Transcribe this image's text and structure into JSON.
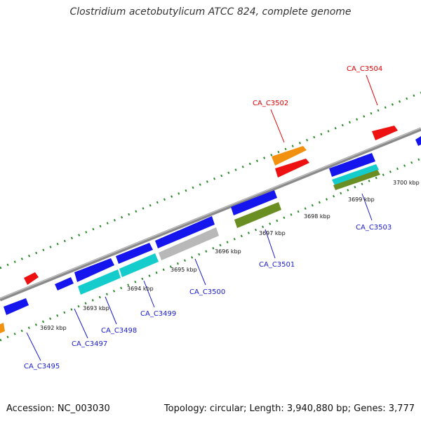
{
  "title": "Clostridium acetobutylicum ATCC 824, complete genome",
  "footer": {
    "accession": "Accession: NC_003030",
    "topology": "Topology: circular; Length: 3,940,880 bp; Genes: 3,777"
  },
  "colors": {
    "backbone": "#8a8a8a",
    "tick": "#2a8a2a",
    "label_blue": "#1a1acc",
    "label_red": "#dd0000",
    "gene_blue": "#1515ee",
    "gene_red": "#ee1111",
    "gene_orange": "#f29010",
    "gene_cyan": "#15cccc",
    "gene_olive": "#6b8e23",
    "gene_gray": "#b8b8b8"
  },
  "scale_labels": [
    "3692 kbp",
    "3693 kbp",
    "3694 kbp",
    "3695 kbp",
    "3696 kbp",
    "3697 kbp",
    "3698 kbp",
    "3699 kbp",
    "3700 kbp"
  ],
  "gene_labels": [
    {
      "id": "ca3495",
      "text": "CA_C3495",
      "color": "blue"
    },
    {
      "id": "ca3497",
      "text": "CA_C3497",
      "color": "blue"
    },
    {
      "id": "ca3498",
      "text": "CA_C3498",
      "color": "blue"
    },
    {
      "id": "ca3499",
      "text": "CA_C3499",
      "color": "blue"
    },
    {
      "id": "ca3500",
      "text": "CA_C3500",
      "color": "blue"
    },
    {
      "id": "ca3501",
      "text": "CA_C3501",
      "color": "blue"
    },
    {
      "id": "ca3503",
      "text": "CA_C3503",
      "color": "blue"
    },
    {
      "id": "ca3502",
      "text": "CA_C3502",
      "color": "red"
    },
    {
      "id": "ca3504",
      "text": "CA_C3504",
      "color": "red"
    }
  ]
}
